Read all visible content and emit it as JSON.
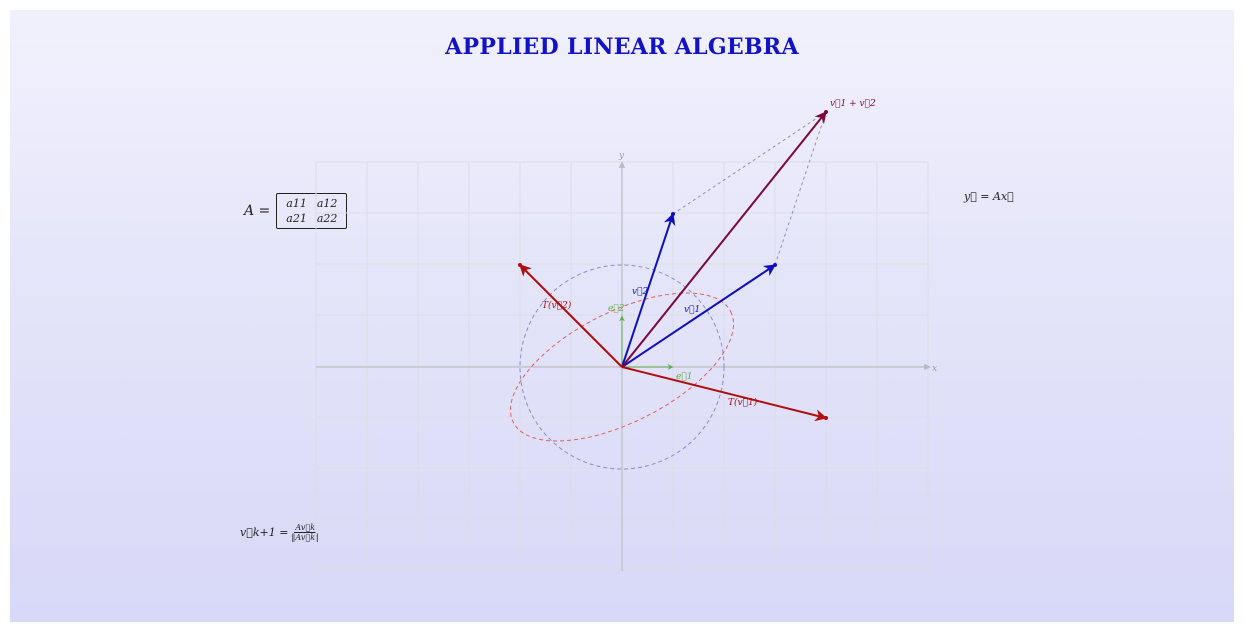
{
  "title": "APPLIED LINEAR ALGEBRA",
  "equations": {
    "matrix_lhs": "A =",
    "matrix": [
      [
        "a11",
        "a12"
      ],
      [
        "a21",
        "a22"
      ]
    ],
    "linear_map": "y⃗ = Ax⃗",
    "power_lhs": "v⃗k+1 =",
    "power_num": "Av⃗k",
    "power_den": "‖Av⃗k‖"
  },
  "axes": {
    "x_label": "x",
    "y_label": "y",
    "grid": true
  },
  "vectors": [
    {
      "id": "e1",
      "label": "e⃗1",
      "to": [
        1,
        0
      ],
      "color": "#5fb04d"
    },
    {
      "id": "e2",
      "label": "e⃗2",
      "to": [
        0,
        1
      ],
      "color": "#5fb04d"
    },
    {
      "id": "v1",
      "label": "v⃗1",
      "to": [
        3,
        2
      ],
      "color": "#1010bb"
    },
    {
      "id": "v2",
      "label": "v⃗2",
      "to": [
        1,
        3
      ],
      "color": "#1010bb"
    },
    {
      "id": "v1v2",
      "label": "v⃗1 + v⃗2",
      "to": [
        4,
        5
      ],
      "color": "#7a0a3e"
    },
    {
      "id": "Tv1",
      "label": "T(v⃗1)",
      "to": [
        4,
        -1
      ],
      "color": "#b00d0d"
    },
    {
      "id": "Tv2",
      "label": "T(v⃗2)",
      "to": [
        -2,
        2
      ],
      "color": "#b00d0d"
    }
  ],
  "colors": {
    "background_top": "#f1f1fd",
    "background_bottom": "#d8d8f8",
    "title": "#1212c6",
    "grid": "#dcdce6",
    "unit_circle": "#8a8ad6",
    "ellipse": "#e06060",
    "parallelogram": "#9090b0"
  }
}
